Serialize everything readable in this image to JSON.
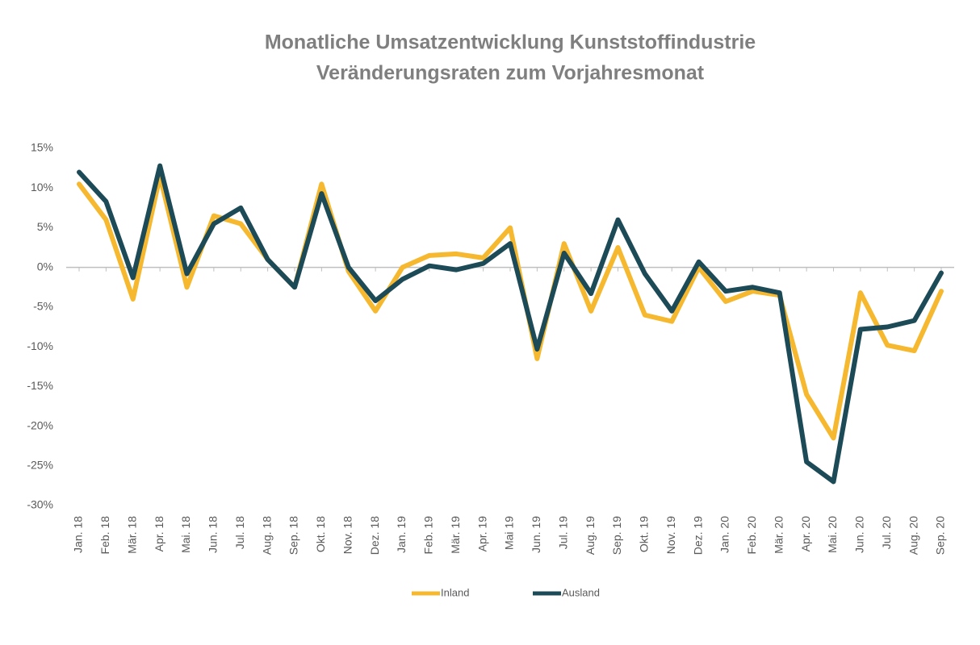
{
  "chart_data": {
    "type": "line",
    "title": "Monatliche Umsatzentwicklung Kunststoffindustrie",
    "subtitle": "Veränderungsraten zum Vorjahresmonat",
    "categories": [
      "Jan. 18",
      "Feb. 18",
      "Mär. 18",
      "Apr. 18",
      "Mai. 18",
      "Jun. 18",
      "Jul. 18",
      "Aug. 18",
      "Sep. 18",
      "Okt. 18",
      "Nov. 18",
      "Dez. 18",
      "Jan. 19",
      "Feb. 19",
      "Mär. 19",
      "Apr. 19",
      "Mai 19",
      "Jun. 19",
      "Jul. 19",
      "Aug. 19",
      "Sep. 19",
      "Okt. 19",
      "Nov. 19",
      "Dez. 19",
      "Jan. 20",
      "Feb. 20",
      "Mär. 20",
      "Apr. 20",
      "Mai. 20",
      "Jun. 20",
      "Jul. 20",
      "Aug. 20",
      "Sep. 20"
    ],
    "series": [
      {
        "name": "Inland",
        "color": "#f5b82e",
        "values": [
          10.5,
          6,
          -4,
          11.5,
          -2.5,
          6.5,
          5.5,
          1,
          -2.5,
          10.5,
          -0.5,
          -5.5,
          0,
          1.5,
          1.7,
          1.2,
          5,
          -11.5,
          3,
          -5.5,
          2.5,
          -6,
          -6.8,
          0,
          -4.3,
          -3,
          -3.5,
          -16,
          -21.5,
          -3.2,
          -9.8,
          -10.5,
          -3
        ]
      },
      {
        "name": "Ausland",
        "color": "#1c4a57",
        "values": [
          12,
          8.3,
          -1.3,
          12.8,
          -0.8,
          5.5,
          7.5,
          1,
          -2.5,
          9.3,
          0,
          -4.2,
          -1.5,
          0.2,
          -0.3,
          0.5,
          3,
          -10.3,
          1.8,
          -3.3,
          6,
          -0.8,
          -5.5,
          0.7,
          -3,
          -2.5,
          -3.2,
          -24.5,
          -27,
          -7.8,
          -7.5,
          -6.7,
          -0.7
        ]
      }
    ],
    "ylim": [
      -30,
      15
    ],
    "yticks": [
      {
        "value": 15,
        "label": "15%"
      },
      {
        "value": 10,
        "label": "10%"
      },
      {
        "value": 5,
        "label": "5%"
      },
      {
        "value": 0,
        "label": "0%"
      },
      {
        "value": -5,
        "label": "-5%"
      },
      {
        "value": -10,
        "label": "-10%"
      },
      {
        "value": -15,
        "label": "-15%"
      },
      {
        "value": -20,
        "label": "-20%"
      },
      {
        "value": -25,
        "label": "-25%"
      },
      {
        "value": -30,
        "label": "-30%"
      }
    ],
    "grid": false,
    "legend": "bottom"
  }
}
